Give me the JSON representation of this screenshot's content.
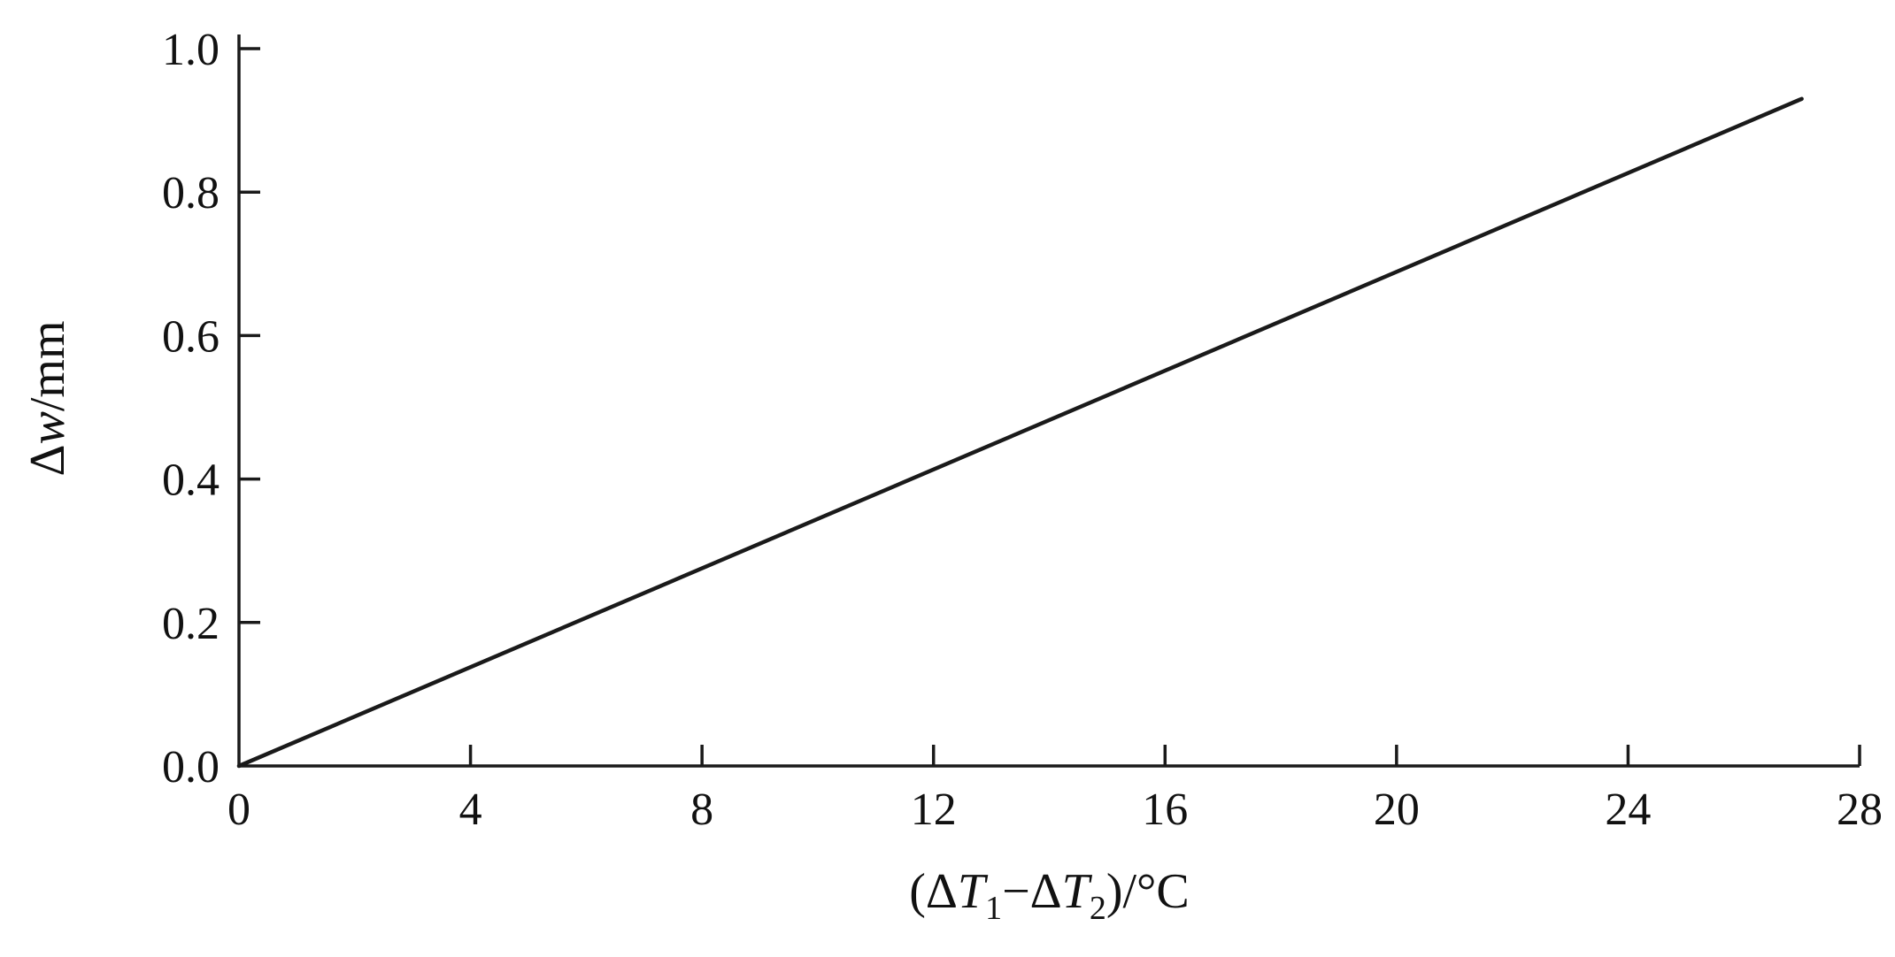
{
  "chart_data": {
    "type": "line",
    "title": "",
    "xlabel": "(ΔT₁−ΔT₂)/°C",
    "ylabel": "Δw/mm",
    "xlabel_parts": [
      {
        "text": "(Δ"
      },
      {
        "text": "T",
        "style": "italic"
      },
      {
        "text": "1",
        "script": "sub"
      },
      {
        "text": "−Δ"
      },
      {
        "text": "T",
        "style": "italic"
      },
      {
        "text": "2",
        "script": "sub"
      },
      {
        "text": ")/°C"
      }
    ],
    "ylabel_parts": [
      {
        "text": "Δ"
      },
      {
        "text": "w",
        "style": "italic"
      },
      {
        "text": "/mm"
      }
    ],
    "xlim": [
      0,
      28
    ],
    "ylim": [
      0.0,
      1.0
    ],
    "xtick_values": [
      0,
      4,
      8,
      12,
      16,
      20,
      24,
      28
    ],
    "xtick_labels": [
      "0",
      "4",
      "8",
      "12",
      "16",
      "20",
      "24",
      "28"
    ],
    "ytick_values": [
      0.0,
      0.2,
      0.4,
      0.6,
      0.8,
      1.0
    ],
    "ytick_labels": [
      "0.0",
      "0.2",
      "0.4",
      "0.6",
      "0.8",
      "1.0"
    ],
    "grid": false,
    "legend": false,
    "series": [
      {
        "points": [
          [
            0,
            0.0
          ],
          [
            27,
            0.93
          ]
        ]
      }
    ]
  },
  "colors": {
    "background": "#ffffff",
    "axis": "#1a1a1a",
    "line": "#1a1a1a",
    "text": "#111111"
  }
}
